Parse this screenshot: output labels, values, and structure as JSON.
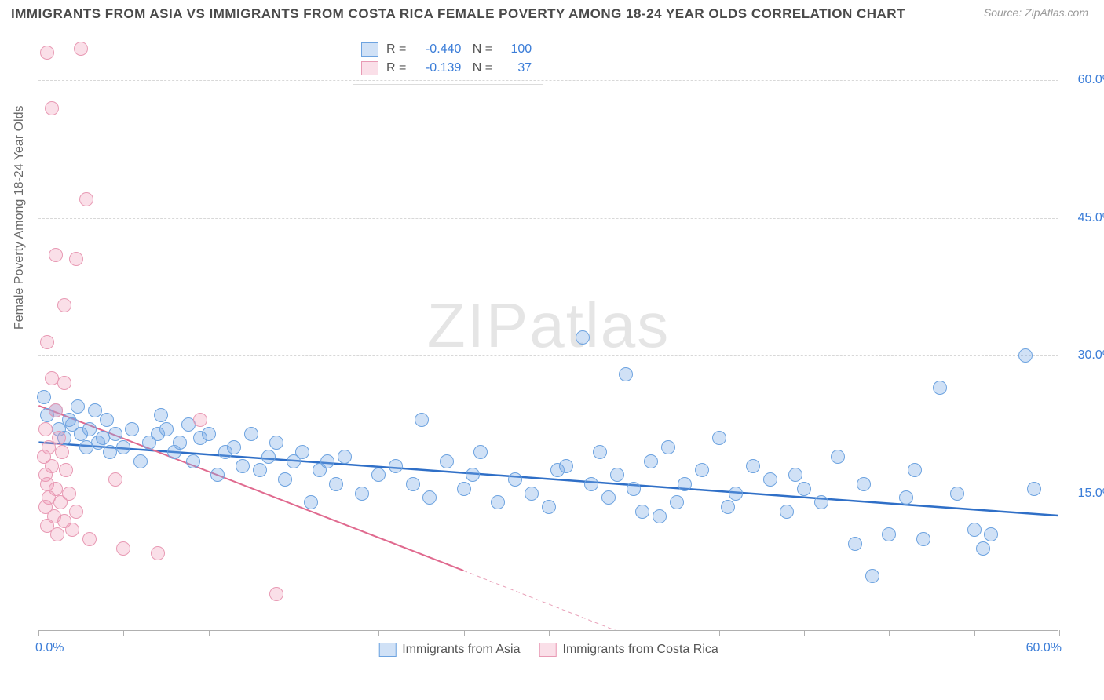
{
  "title": "IMMIGRANTS FROM ASIA VS IMMIGRANTS FROM COSTA RICA FEMALE POVERTY AMONG 18-24 YEAR OLDS CORRELATION CHART",
  "source": "Source: ZipAtlas.com",
  "watermark_a": "ZIP",
  "watermark_b": "atlas",
  "y_axis_title": "Female Poverty Among 18-24 Year Olds",
  "axes": {
    "xlim": [
      0,
      60
    ],
    "ylim": [
      0,
      65
    ],
    "x_tick_min": "0.0%",
    "x_tick_max": "60.0%",
    "y_ticks": [
      {
        "v": 15,
        "label": "15.0%"
      },
      {
        "v": 30,
        "label": "30.0%"
      },
      {
        "v": 45,
        "label": "45.0%"
      },
      {
        "v": 60,
        "label": "60.0%"
      }
    ],
    "x_tick_positions": [
      0,
      5,
      10,
      15,
      20,
      25,
      30,
      35,
      40,
      45,
      50,
      55,
      60
    ],
    "grid_color": "#d8d8d8"
  },
  "series": [
    {
      "key": "asia",
      "name": "Immigrants from Asia",
      "color_fill": "rgba(120,170,230,0.35)",
      "color_stroke": "#6da3e0",
      "marker_r": 9,
      "R": "-0.440",
      "N": "100",
      "trend": {
        "x1": 0,
        "y1": 20.5,
        "x2": 60,
        "y2": 12.5,
        "color": "#2f6fc7",
        "width": 2.5,
        "dash": ""
      },
      "points": [
        [
          0.3,
          25.5
        ],
        [
          0.5,
          23.5
        ],
        [
          1.0,
          24.0
        ],
        [
          1.2,
          22.0
        ],
        [
          1.5,
          21.0
        ],
        [
          1.8,
          23.0
        ],
        [
          2.0,
          22.5
        ],
        [
          2.3,
          24.5
        ],
        [
          2.5,
          21.5
        ],
        [
          2.8,
          20.0
        ],
        [
          3.0,
          22.0
        ],
        [
          3.3,
          24.0
        ],
        [
          3.5,
          20.5
        ],
        [
          3.8,
          21.0
        ],
        [
          4.0,
          23.0
        ],
        [
          4.2,
          19.5
        ],
        [
          4.5,
          21.5
        ],
        [
          5.0,
          20.0
        ],
        [
          5.5,
          22.0
        ],
        [
          6.0,
          18.5
        ],
        [
          6.5,
          20.5
        ],
        [
          7.0,
          21.5
        ],
        [
          7.2,
          23.5
        ],
        [
          7.5,
          22.0
        ],
        [
          8.0,
          19.5
        ],
        [
          8.3,
          20.5
        ],
        [
          8.8,
          22.5
        ],
        [
          9.1,
          18.5
        ],
        [
          9.5,
          21.0
        ],
        [
          10.0,
          21.5
        ],
        [
          10.5,
          17.0
        ],
        [
          11.0,
          19.5
        ],
        [
          11.5,
          20.0
        ],
        [
          12.0,
          18.0
        ],
        [
          12.5,
          21.5
        ],
        [
          13.0,
          17.5
        ],
        [
          13.5,
          19.0
        ],
        [
          14.0,
          20.5
        ],
        [
          14.5,
          16.5
        ],
        [
          15.0,
          18.5
        ],
        [
          15.5,
          19.5
        ],
        [
          16.0,
          14.0
        ],
        [
          16.5,
          17.5
        ],
        [
          17.0,
          18.5
        ],
        [
          17.5,
          16.0
        ],
        [
          18.0,
          19.0
        ],
        [
          19.0,
          15.0
        ],
        [
          20.0,
          17.0
        ],
        [
          21.0,
          18.0
        ],
        [
          22.0,
          16.0
        ],
        [
          22.5,
          23.0
        ],
        [
          23.0,
          14.5
        ],
        [
          24.0,
          18.5
        ],
        [
          25.0,
          15.5
        ],
        [
          25.5,
          17.0
        ],
        [
          26.0,
          19.5
        ],
        [
          27.0,
          14.0
        ],
        [
          28.0,
          16.5
        ],
        [
          29.0,
          15.0
        ],
        [
          30.0,
          13.5
        ],
        [
          30.5,
          17.5
        ],
        [
          31.0,
          18.0
        ],
        [
          32.0,
          32.0
        ],
        [
          32.5,
          16.0
        ],
        [
          33.0,
          19.5
        ],
        [
          33.5,
          14.5
        ],
        [
          34.0,
          17.0
        ],
        [
          34.5,
          28.0
        ],
        [
          35.0,
          15.5
        ],
        [
          35.5,
          13.0
        ],
        [
          36.0,
          18.5
        ],
        [
          36.5,
          12.5
        ],
        [
          37.0,
          20.0
        ],
        [
          37.5,
          14.0
        ],
        [
          38.0,
          16.0
        ],
        [
          39.0,
          17.5
        ],
        [
          40.0,
          21.0
        ],
        [
          40.5,
          13.5
        ],
        [
          41.0,
          15.0
        ],
        [
          42.0,
          18.0
        ],
        [
          43.0,
          16.5
        ],
        [
          44.0,
          13.0
        ],
        [
          44.5,
          17.0
        ],
        [
          45.0,
          15.5
        ],
        [
          46.0,
          14.0
        ],
        [
          47.0,
          19.0
        ],
        [
          48.0,
          9.5
        ],
        [
          48.5,
          16.0
        ],
        [
          49.0,
          6.0
        ],
        [
          50.0,
          10.5
        ],
        [
          51.0,
          14.5
        ],
        [
          51.5,
          17.5
        ],
        [
          52.0,
          10.0
        ],
        [
          53.0,
          26.5
        ],
        [
          54.0,
          15.0
        ],
        [
          55.0,
          11.0
        ],
        [
          55.5,
          9.0
        ],
        [
          56.0,
          10.5
        ],
        [
          58.0,
          30.0
        ],
        [
          58.5,
          15.5
        ]
      ]
    },
    {
      "key": "costarica",
      "name": "Immigrants from Costa Rica",
      "color_fill": "rgba(240,150,180,0.30)",
      "color_stroke": "#e89ab4",
      "marker_r": 9,
      "R": "-0.139",
      "N": "37",
      "trend": {
        "x1": 0,
        "y1": 24.5,
        "x2": 25,
        "y2": 6.5,
        "color": "#e06a8f",
        "width": 2,
        "dash": ""
      },
      "trend_ext": {
        "x1": 25,
        "y1": 6.5,
        "x2": 38,
        "y2": -3,
        "color": "#e8a0b8",
        "width": 1,
        "dash": "5,4"
      },
      "points": [
        [
          0.5,
          63.0
        ],
        [
          2.5,
          63.5
        ],
        [
          0.8,
          57.0
        ],
        [
          2.8,
          47.0
        ],
        [
          1.0,
          41.0
        ],
        [
          2.2,
          40.5
        ],
        [
          1.5,
          35.5
        ],
        [
          0.5,
          31.5
        ],
        [
          0.8,
          27.5
        ],
        [
          1.5,
          27.0
        ],
        [
          1.0,
          24.0
        ],
        [
          0.4,
          22.0
        ],
        [
          1.2,
          21.0
        ],
        [
          0.6,
          20.0
        ],
        [
          0.3,
          19.0
        ],
        [
          1.4,
          19.5
        ],
        [
          0.8,
          18.0
        ],
        [
          0.4,
          17.0
        ],
        [
          1.6,
          17.5
        ],
        [
          0.5,
          16.0
        ],
        [
          1.0,
          15.5
        ],
        [
          1.8,
          15.0
        ],
        [
          0.6,
          14.5
        ],
        [
          1.3,
          14.0
        ],
        [
          0.4,
          13.5
        ],
        [
          2.2,
          13.0
        ],
        [
          0.9,
          12.5
        ],
        [
          1.5,
          12.0
        ],
        [
          0.5,
          11.5
        ],
        [
          2.0,
          11.0
        ],
        [
          1.1,
          10.5
        ],
        [
          3.0,
          10.0
        ],
        [
          4.5,
          16.5
        ],
        [
          5.0,
          9.0
        ],
        [
          7.0,
          8.5
        ],
        [
          9.5,
          23.0
        ],
        [
          14.0,
          4.0
        ]
      ]
    }
  ]
}
